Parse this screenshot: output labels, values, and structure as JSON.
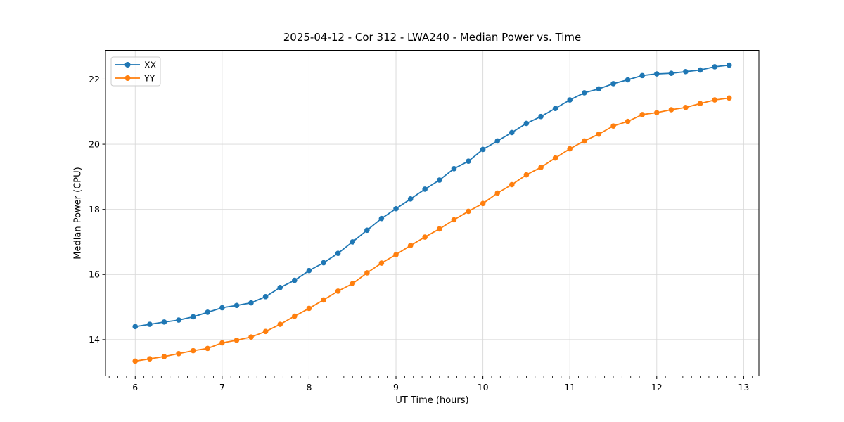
{
  "figure": {
    "background": "#ffffff"
  },
  "chart_data": {
    "type": "line",
    "title": "2025-04-12 - Cor 312 - LWA240 - Median Power vs. Time",
    "xlabel": "UT Time (hours)",
    "ylabel": "Median Power (CPU)",
    "x": [
      6.0,
      6.167,
      6.333,
      6.5,
      6.667,
      6.833,
      7.0,
      7.167,
      7.333,
      7.5,
      7.667,
      7.833,
      8.0,
      8.167,
      8.333,
      8.5,
      8.667,
      8.833,
      9.0,
      9.167,
      9.333,
      9.5,
      9.667,
      9.833,
      10.0,
      10.167,
      10.333,
      10.5,
      10.667,
      10.833,
      11.0,
      11.167,
      11.333,
      11.5,
      11.667,
      11.833,
      12.0,
      12.167,
      12.333,
      12.5,
      12.667,
      12.833
    ],
    "series": [
      {
        "name": "XX",
        "color": "#1f77b4",
        "marker": "circle",
        "values": [
          14.4,
          14.47,
          14.54,
          14.6,
          14.7,
          14.84,
          14.98,
          15.05,
          15.13,
          15.32,
          15.6,
          15.82,
          16.12,
          16.36,
          16.65,
          17.0,
          17.36,
          17.72,
          18.02,
          18.32,
          18.62,
          18.9,
          19.25,
          19.48,
          19.84,
          20.1,
          20.36,
          20.64,
          20.85,
          21.1,
          21.36,
          21.58,
          21.7,
          21.86,
          21.98,
          22.11,
          22.16,
          22.18,
          22.23,
          22.28,
          22.38,
          22.43
        ]
      },
      {
        "name": "YY",
        "color": "#ff7f0e",
        "marker": "circle",
        "values": [
          13.34,
          13.41,
          13.48,
          13.57,
          13.66,
          13.73,
          13.9,
          13.98,
          14.08,
          14.25,
          14.47,
          14.72,
          14.96,
          15.22,
          15.49,
          15.72,
          16.05,
          16.35,
          16.61,
          16.89,
          17.15,
          17.4,
          17.68,
          17.94,
          18.18,
          18.5,
          18.76,
          19.06,
          19.29,
          19.58,
          19.86,
          20.1,
          20.31,
          20.56,
          20.7,
          20.91,
          20.97,
          21.06,
          21.13,
          21.25,
          21.36,
          21.42
        ]
      }
    ],
    "xlim": [
      5.658,
      13.175
    ],
    "ylim": [
      12.885,
      22.885
    ],
    "xticks": [
      6,
      7,
      8,
      9,
      10,
      11,
      12,
      13
    ],
    "yticks": [
      14,
      16,
      18,
      20,
      22
    ],
    "x_minor_tick_step": 0.1,
    "grid": true,
    "legend_position": "upper-left",
    "colors": {
      "grid": "#d9d9d9",
      "spine": "#000000",
      "text": "#000000",
      "legend_border": "#cccccc"
    }
  }
}
